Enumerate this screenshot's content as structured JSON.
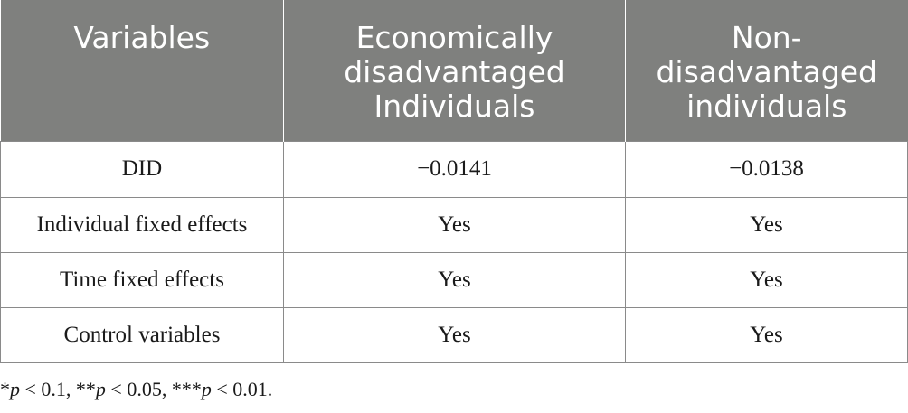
{
  "table": {
    "headers": [
      "Variables",
      "Economically disadvantaged Individuals",
      "Non-disadvantaged individuals"
    ],
    "header_lines": [
      [
        "Variables"
      ],
      [
        "Economically",
        "disadvantaged",
        "Individuals"
      ],
      [
        "Non-",
        "disadvantaged",
        "individuals"
      ]
    ],
    "rows": [
      [
        "DID",
        "−0.0141",
        "−0.0138"
      ],
      [
        "Individual fixed effects",
        "Yes",
        "Yes"
      ],
      [
        "Time fixed effects",
        "Yes",
        "Yes"
      ],
      [
        "Control variables",
        "Yes",
        "Yes"
      ]
    ]
  },
  "footnote": {
    "p1_label": "p",
    "p1_text": " < 0.1, **",
    "p2_label": "p",
    "p2_text": " < 0.05, ***",
    "p3_label": "p",
    "p3_text": " < 0.01.",
    "prefix": "*"
  },
  "colors": {
    "header_bg": "#7f807e",
    "header_text": "#ffffff",
    "border": "#8a8a8a"
  }
}
